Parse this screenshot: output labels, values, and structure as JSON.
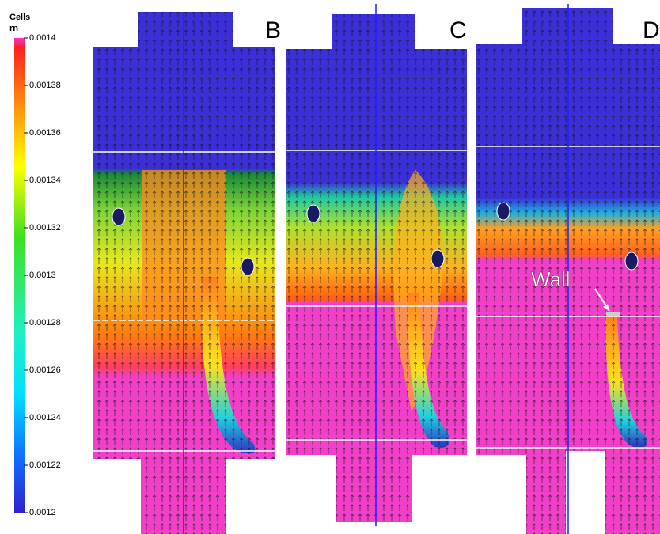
{
  "colorbar": {
    "title": "Cells",
    "subtitle": "rn",
    "range": [
      0.0012,
      0.0014
    ],
    "ticks": [
      0.0014,
      0.00138,
      0.00136,
      0.00134,
      0.00132,
      0.0013,
      0.00128,
      0.00126,
      0.00124,
      0.00122,
      0.0012
    ]
  },
  "panels": [
    {
      "label": "B"
    },
    {
      "label": "C"
    },
    {
      "label": "D"
    }
  ],
  "annotation": "Wall"
}
